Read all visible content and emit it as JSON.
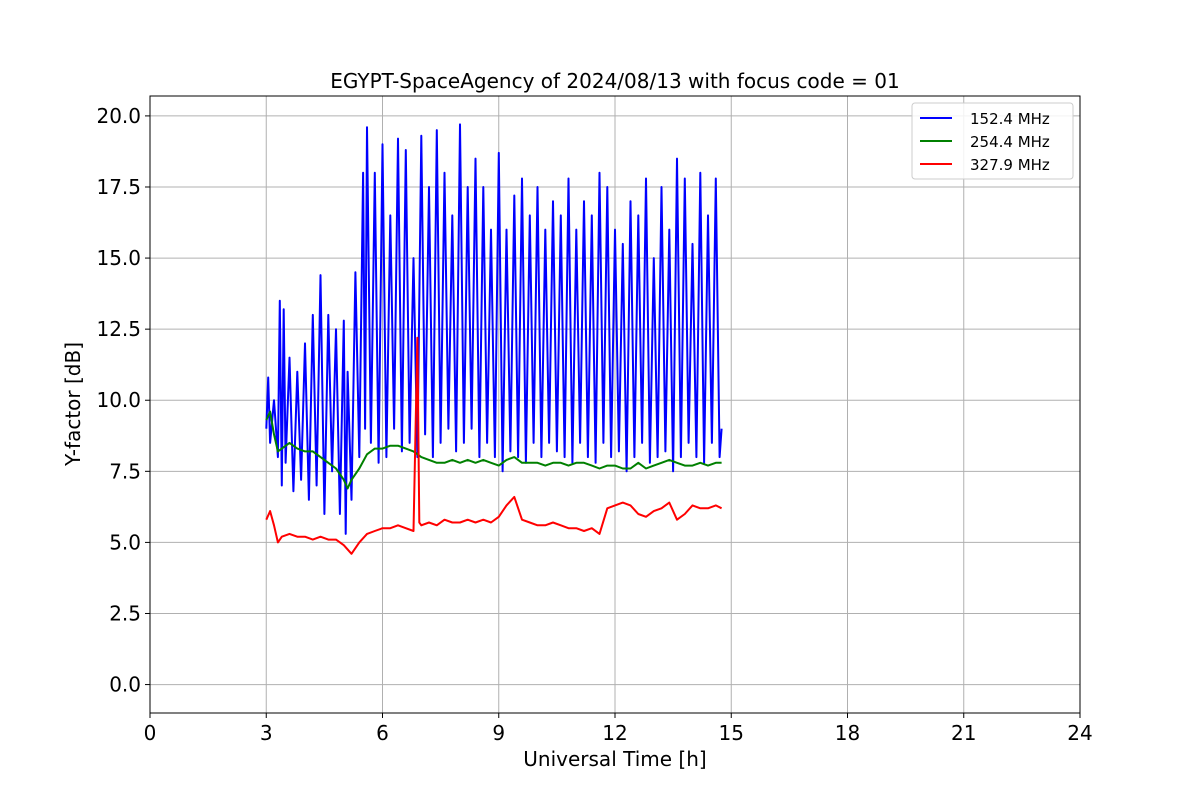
{
  "chart_data": {
    "type": "line",
    "title": "EGYPT-SpaceAgency of 2024/08/13 with focus code = 01",
    "xlabel": "Universal Time [h]",
    "ylabel": "Y-factor [dB]",
    "xlim": [
      0,
      24
    ],
    "ylim": [
      -1.0,
      20.7
    ],
    "xticks": [
      0,
      3,
      6,
      9,
      12,
      15,
      18,
      21,
      24
    ],
    "xtick_labels": [
      "0",
      "3",
      "6",
      "9",
      "12",
      "15",
      "18",
      "21",
      "24"
    ],
    "yticks": [
      0.0,
      2.5,
      5.0,
      7.5,
      10.0,
      12.5,
      15.0,
      17.5,
      20.0
    ],
    "ytick_labels": [
      "0.0",
      "2.5",
      "5.0",
      "7.5",
      "10.0",
      "12.5",
      "15.0",
      "17.5",
      "20.0"
    ],
    "grid": true,
    "legend_position": "top-right",
    "series": [
      {
        "name": "152.4 MHz",
        "color": "#0000ff",
        "x": [
          3.0,
          3.05,
          3.1,
          3.2,
          3.3,
          3.35,
          3.4,
          3.45,
          3.5,
          3.6,
          3.7,
          3.8,
          3.9,
          4.0,
          4.1,
          4.2,
          4.3,
          4.4,
          4.5,
          4.6,
          4.7,
          4.8,
          4.9,
          5.0,
          5.05,
          5.1,
          5.2,
          5.3,
          5.4,
          5.5,
          5.55,
          5.6,
          5.7,
          5.8,
          5.9,
          6.0,
          6.1,
          6.2,
          6.3,
          6.4,
          6.5,
          6.6,
          6.7,
          6.8,
          6.9,
          7.0,
          7.1,
          7.2,
          7.3,
          7.4,
          7.5,
          7.6,
          7.7,
          7.8,
          7.9,
          8.0,
          8.1,
          8.2,
          8.3,
          8.4,
          8.5,
          8.6,
          8.7,
          8.8,
          8.9,
          9.0,
          9.1,
          9.2,
          9.3,
          9.4,
          9.5,
          9.6,
          9.7,
          9.8,
          9.9,
          10.0,
          10.1,
          10.2,
          10.3,
          10.4,
          10.5,
          10.6,
          10.7,
          10.8,
          10.9,
          11.0,
          11.1,
          11.2,
          11.3,
          11.4,
          11.5,
          11.6,
          11.7,
          11.8,
          11.9,
          12.0,
          12.1,
          12.2,
          12.3,
          12.4,
          12.5,
          12.6,
          12.7,
          12.8,
          12.9,
          13.0,
          13.1,
          13.2,
          13.3,
          13.4,
          13.5,
          13.6,
          13.7,
          13.8,
          13.9,
          14.0,
          14.1,
          14.2,
          14.3,
          14.4,
          14.5,
          14.6,
          14.7,
          14.75
        ],
        "values": [
          9.0,
          10.8,
          8.5,
          10.0,
          8.0,
          13.5,
          7.0,
          13.2,
          7.8,
          11.5,
          6.8,
          11.0,
          7.2,
          12.0,
          6.5,
          13.0,
          7.0,
          14.4,
          6.0,
          13.0,
          7.5,
          12.5,
          6.0,
          12.8,
          5.3,
          11.0,
          6.5,
          14.5,
          8.0,
          18.0,
          9.0,
          19.6,
          8.5,
          18.0,
          7.8,
          19.0,
          8.0,
          16.5,
          9.0,
          19.2,
          8.2,
          18.8,
          8.5,
          15.0,
          8.0,
          19.3,
          8.8,
          17.5,
          8.0,
          19.5,
          8.5,
          18.0,
          9.0,
          16.5,
          8.2,
          19.7,
          8.5,
          17.5,
          9.0,
          18.5,
          8.0,
          17.5,
          8.5,
          16.0,
          8.0,
          18.7,
          7.5,
          16.0,
          8.2,
          17.2,
          8.0,
          17.8,
          7.8,
          16.5,
          8.5,
          17.5,
          8.0,
          16.0,
          8.5,
          17.0,
          8.2,
          16.5,
          8.0,
          17.8,
          7.8,
          16.0,
          8.5,
          17.0,
          8.0,
          16.5,
          7.8,
          18.0,
          8.5,
          17.5,
          8.0,
          16.0,
          8.2,
          15.5,
          7.5,
          17.0,
          8.0,
          16.5,
          8.5,
          17.8,
          7.8,
          15.0,
          8.0,
          17.5,
          8.2,
          16.0,
          7.5,
          18.5,
          8.0,
          17.8,
          8.5,
          15.5,
          8.0,
          18.0,
          7.8,
          16.5,
          8.5,
          17.8,
          8.0,
          9.0
        ]
      },
      {
        "name": "254.4 MHz",
        "color": "#008000",
        "x": [
          3.0,
          3.1,
          3.2,
          3.3,
          3.4,
          3.6,
          3.8,
          4.0,
          4.2,
          4.4,
          4.6,
          4.8,
          5.0,
          5.1,
          5.2,
          5.4,
          5.6,
          5.8,
          6.0,
          6.2,
          6.4,
          6.6,
          6.8,
          7.0,
          7.2,
          7.4,
          7.6,
          7.8,
          8.0,
          8.2,
          8.4,
          8.6,
          8.8,
          9.0,
          9.2,
          9.4,
          9.6,
          9.8,
          10.0,
          10.2,
          10.4,
          10.6,
          10.8,
          11.0,
          11.2,
          11.4,
          11.6,
          11.8,
          12.0,
          12.2,
          12.4,
          12.6,
          12.8,
          13.0,
          13.2,
          13.4,
          13.6,
          13.8,
          14.0,
          14.2,
          14.4,
          14.6,
          14.75
        ],
        "values": [
          9.3,
          9.6,
          8.8,
          8.2,
          8.3,
          8.5,
          8.3,
          8.2,
          8.2,
          8.0,
          7.8,
          7.6,
          7.2,
          6.9,
          7.2,
          7.6,
          8.1,
          8.3,
          8.3,
          8.4,
          8.4,
          8.3,
          8.2,
          8.0,
          7.9,
          7.8,
          7.8,
          7.9,
          7.8,
          7.9,
          7.8,
          7.9,
          7.8,
          7.7,
          7.9,
          8.0,
          7.8,
          7.8,
          7.8,
          7.7,
          7.8,
          7.8,
          7.7,
          7.8,
          7.8,
          7.7,
          7.6,
          7.7,
          7.7,
          7.6,
          7.6,
          7.8,
          7.6,
          7.7,
          7.8,
          7.9,
          7.8,
          7.7,
          7.7,
          7.8,
          7.7,
          7.8,
          7.8
        ]
      },
      {
        "name": "327.9 MHz",
        "color": "#ff0000",
        "x": [
          3.0,
          3.1,
          3.2,
          3.3,
          3.4,
          3.6,
          3.8,
          4.0,
          4.2,
          4.4,
          4.6,
          4.8,
          5.0,
          5.2,
          5.4,
          5.6,
          5.8,
          6.0,
          6.2,
          6.4,
          6.6,
          6.8,
          6.9,
          6.95,
          7.0,
          7.2,
          7.4,
          7.6,
          7.8,
          8.0,
          8.2,
          8.4,
          8.6,
          8.8,
          9.0,
          9.2,
          9.4,
          9.6,
          9.8,
          10.0,
          10.2,
          10.4,
          10.6,
          10.8,
          11.0,
          11.2,
          11.4,
          11.6,
          11.8,
          12.0,
          12.2,
          12.4,
          12.6,
          12.8,
          13.0,
          13.2,
          13.4,
          13.6,
          13.8,
          14.0,
          14.2,
          14.4,
          14.6,
          14.75
        ],
        "values": [
          5.8,
          6.1,
          5.6,
          5.0,
          5.2,
          5.3,
          5.2,
          5.2,
          5.1,
          5.2,
          5.1,
          5.1,
          4.9,
          4.6,
          5.0,
          5.3,
          5.4,
          5.5,
          5.5,
          5.6,
          5.5,
          5.4,
          12.2,
          5.7,
          5.6,
          5.7,
          5.6,
          5.8,
          5.7,
          5.7,
          5.8,
          5.7,
          5.8,
          5.7,
          5.9,
          6.3,
          6.6,
          5.8,
          5.7,
          5.6,
          5.6,
          5.7,
          5.6,
          5.5,
          5.5,
          5.4,
          5.5,
          5.3,
          6.2,
          6.3,
          6.4,
          6.3,
          6.0,
          5.9,
          6.1,
          6.2,
          6.4,
          5.8,
          6.0,
          6.3,
          6.2,
          6.2,
          6.3,
          6.2
        ]
      }
    ]
  }
}
